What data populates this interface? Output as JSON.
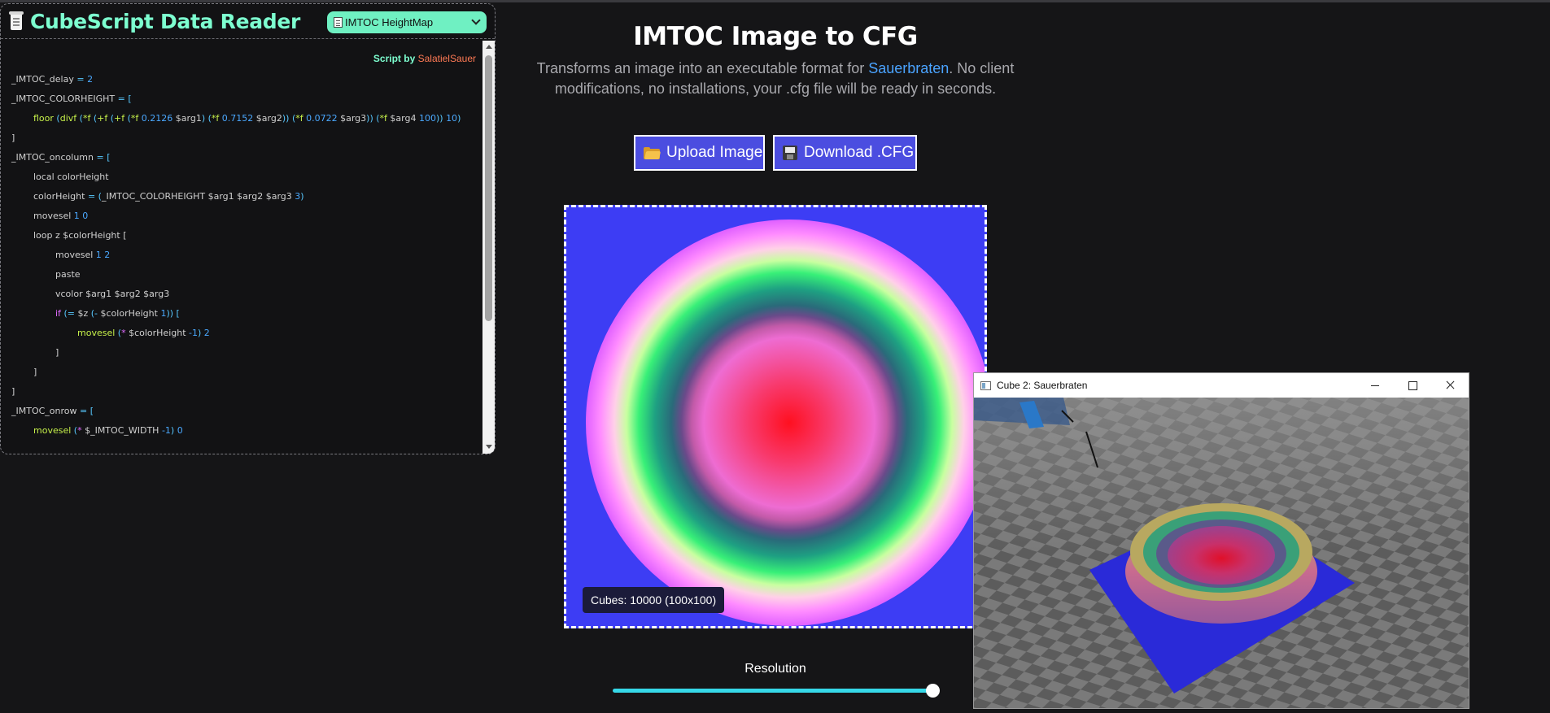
{
  "reader": {
    "title": "CubeScript Data Reader",
    "select_value": "IMTOC HeightMap",
    "credit_prefix": "Script by",
    "credit_author": "SalatielSauer",
    "code_lines": [
      {
        "indent": 0,
        "tokens": [
          {
            "t": "_IMTOC_delay ",
            "c": "var"
          },
          {
            "t": "= ",
            "c": "op"
          },
          {
            "t": "2",
            "c": "num"
          }
        ]
      },
      {
        "indent": 0,
        "tokens": [
          {
            "t": "_IMTOC_COLORHEIGHT ",
            "c": "var"
          },
          {
            "t": "= [",
            "c": "op"
          }
        ]
      },
      {
        "indent": 1,
        "tokens": [
          {
            "t": "floor ",
            "c": "fn"
          },
          {
            "t": "(",
            "c": "op"
          },
          {
            "t": "divf ",
            "c": "fn"
          },
          {
            "t": "(",
            "c": "op"
          },
          {
            "t": "*f ",
            "c": "fn"
          },
          {
            "t": "(",
            "c": "op"
          },
          {
            "t": "+f ",
            "c": "fn"
          },
          {
            "t": "(",
            "c": "op"
          },
          {
            "t": "+f ",
            "c": "fn"
          },
          {
            "t": "(",
            "c": "op"
          },
          {
            "t": "*f ",
            "c": "fn"
          },
          {
            "t": "0.2126 ",
            "c": "num"
          },
          {
            "t": "$arg1",
            "c": "var"
          },
          {
            "t": ") (",
            "c": "op"
          },
          {
            "t": "*f ",
            "c": "fn"
          },
          {
            "t": "0.7152 ",
            "c": "num"
          },
          {
            "t": "$arg2",
            "c": "var"
          },
          {
            "t": ")) (",
            "c": "op"
          },
          {
            "t": "*f ",
            "c": "fn"
          },
          {
            "t": "0.0722 ",
            "c": "num"
          },
          {
            "t": "$arg3",
            "c": "var"
          },
          {
            "t": ")) (",
            "c": "op"
          },
          {
            "t": "*f ",
            "c": "fn"
          },
          {
            "t": "$arg4 ",
            "c": "var"
          },
          {
            "t": "100",
            "c": "num"
          },
          {
            "t": ")) ",
            "c": "op"
          },
          {
            "t": "10",
            "c": "num"
          },
          {
            "t": ")",
            "c": "op"
          }
        ]
      },
      {
        "indent": 0,
        "tokens": [
          {
            "t": "]",
            "c": "var"
          }
        ]
      },
      {
        "indent": 0,
        "tokens": [
          {
            "t": "_IMTOC_oncolumn ",
            "c": "var"
          },
          {
            "t": "= [",
            "c": "op"
          }
        ]
      },
      {
        "indent": 1,
        "tokens": [
          {
            "t": "local colorHeight",
            "c": "var"
          }
        ]
      },
      {
        "indent": 1,
        "tokens": [
          {
            "t": "colorHeight ",
            "c": "var"
          },
          {
            "t": "= (",
            "c": "op"
          },
          {
            "t": "_IMTOC_COLORHEIGHT $arg1 $arg2 $arg3 ",
            "c": "var"
          },
          {
            "t": "3",
            "c": "num"
          },
          {
            "t": ")",
            "c": "op"
          }
        ]
      },
      {
        "indent": 1,
        "tokens": [
          {
            "t": "movesel ",
            "c": "var"
          },
          {
            "t": "1 0",
            "c": "num"
          }
        ]
      },
      {
        "indent": 1,
        "tokens": [
          {
            "t": "loop z $colorHeight [",
            "c": "var"
          }
        ]
      },
      {
        "indent": 2,
        "tokens": [
          {
            "t": "movesel ",
            "c": "var"
          },
          {
            "t": "1 2",
            "c": "num"
          }
        ]
      },
      {
        "indent": 2,
        "tokens": [
          {
            "t": "paste",
            "c": "var"
          }
        ]
      },
      {
        "indent": 2,
        "tokens": [
          {
            "t": "vcolor $arg1 $arg2 $arg3",
            "c": "var"
          }
        ]
      },
      {
        "indent": 2,
        "tokens": [
          {
            "t": "if ",
            "c": "kw"
          },
          {
            "t": "(",
            "c": "op"
          },
          {
            "t": "= ",
            "c": "op"
          },
          {
            "t": "$z ",
            "c": "var"
          },
          {
            "t": "(",
            "c": "op"
          },
          {
            "t": "- ",
            "c": "op"
          },
          {
            "t": "$colorHeight ",
            "c": "var"
          },
          {
            "t": "1",
            "c": "num"
          },
          {
            "t": ")) [",
            "c": "op"
          }
        ]
      },
      {
        "indent": 3,
        "tokens": [
          {
            "t": "movesel ",
            "c": "fn"
          },
          {
            "t": "(",
            "c": "op"
          },
          {
            "t": "* ",
            "c": "kw"
          },
          {
            "t": "$colorHeight ",
            "c": "var"
          },
          {
            "t": "-1",
            "c": "num"
          },
          {
            "t": ") ",
            "c": "op"
          },
          {
            "t": "2",
            "c": "num"
          }
        ]
      },
      {
        "indent": 2,
        "tokens": [
          {
            "t": "]",
            "c": "var"
          }
        ]
      },
      {
        "indent": 1,
        "tokens": [
          {
            "t": "]",
            "c": "var"
          }
        ]
      },
      {
        "indent": 0,
        "tokens": [
          {
            "t": "]",
            "c": "var"
          }
        ]
      },
      {
        "indent": 0,
        "tokens": [
          {
            "t": "_IMTOC_onrow ",
            "c": "var"
          },
          {
            "t": "= [",
            "c": "op"
          }
        ]
      },
      {
        "indent": 1,
        "tokens": [
          {
            "t": "movesel ",
            "c": "fn"
          },
          {
            "t": "(",
            "c": "op"
          },
          {
            "t": "* ",
            "c": "kw"
          },
          {
            "t": "$_IMTOC_WIDTH ",
            "c": "var"
          },
          {
            "t": "-1",
            "c": "num"
          },
          {
            "t": ") ",
            "c": "op"
          },
          {
            "t": "0",
            "c": "num"
          }
        ]
      }
    ]
  },
  "main": {
    "title": "IMTOC Image to CFG",
    "subtitle_part1": "Transforms an image into an executable format for ",
    "subtitle_link": "Sauerbraten",
    "subtitle_part2": ". No client modifications, no installations, your .cfg file will be ready in seconds.",
    "upload_label": "Upload Image",
    "download_label": "Download .CFG",
    "cube_count": "Cubes: 10000 (100x100)",
    "resolution_label": "Resolution",
    "resolution_value": 1.0
  },
  "game_window": {
    "title": "Cube 2: Sauerbraten"
  },
  "icons": {
    "reader": "scroll-document-icon",
    "select": "document-icon",
    "upload": "folder-icon",
    "download": "floppy-disk-icon",
    "app": "window-app-icon"
  },
  "colors": {
    "accent_green": "#7dffd0",
    "author": "#ff7a55",
    "button_blue": "#4b4de0",
    "link_blue": "#4aa3ff",
    "preview_bg": "#3d3df4",
    "slider": "#36d8e8"
  }
}
